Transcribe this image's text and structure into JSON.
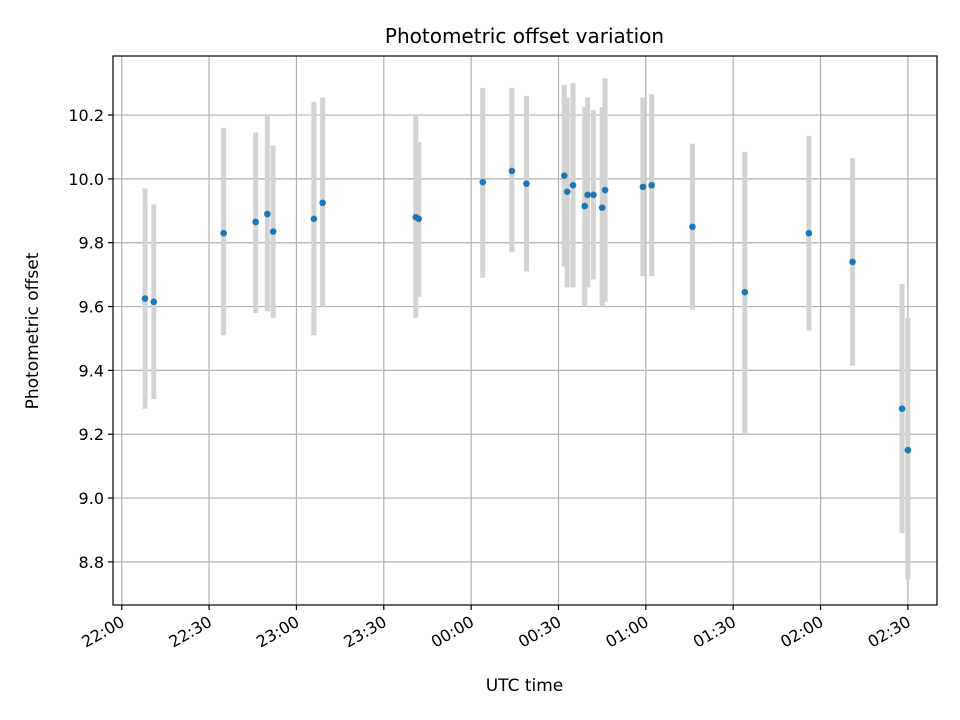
{
  "chart_data": {
    "type": "scatter",
    "title": "Photometric offset variation",
    "xlabel": "UTC time",
    "ylabel": "Photometric offset",
    "x_tick_labels": [
      "22:00",
      "22:30",
      "23:00",
      "23:30",
      "00:00",
      "00:30",
      "01:00",
      "01:30",
      "02:00",
      "02:30"
    ],
    "y_ticks": [
      8.8,
      9.0,
      9.2,
      9.4,
      9.6,
      9.8,
      10.0,
      10.2
    ],
    "y_tick_labels": [
      "8.8",
      "9.0",
      "9.2",
      "9.4",
      "9.6",
      "9.8",
      "10.0",
      "10.2"
    ],
    "xlim": [
      "21:57",
      "02:40"
    ],
    "ylim": [
      8.665,
      10.385
    ],
    "grid": true,
    "colors": {
      "point": "#1f77b4",
      "errorbar": "#d3d3d3",
      "grid": "#b0b0b0"
    },
    "points": [
      {
        "t": "22:08",
        "y": 9.625,
        "lo": 9.28,
        "hi": 9.97
      },
      {
        "t": "22:11",
        "y": 9.615,
        "lo": 9.31,
        "hi": 9.92
      },
      {
        "t": "22:35",
        "y": 9.83,
        "lo": 9.51,
        "hi": 10.16
      },
      {
        "t": "22:46",
        "y": 9.865,
        "lo": 9.58,
        "hi": 10.145
      },
      {
        "t": "22:50",
        "y": 9.89,
        "lo": 9.585,
        "hi": 10.2
      },
      {
        "t": "22:52",
        "y": 9.835,
        "lo": 9.565,
        "hi": 10.105
      },
      {
        "t": "23:06",
        "y": 9.875,
        "lo": 9.51,
        "hi": 10.24
      },
      {
        "t": "23:09",
        "y": 9.925,
        "lo": 9.6,
        "hi": 10.255
      },
      {
        "t": "23:41",
        "y": 9.88,
        "lo": 9.565,
        "hi": 10.2
      },
      {
        "t": "23:42",
        "y": 9.875,
        "lo": 9.63,
        "hi": 10.115
      },
      {
        "t": "00:04",
        "y": 9.99,
        "lo": 9.69,
        "hi": 10.285
      },
      {
        "t": "00:14",
        "y": 10.025,
        "lo": 9.77,
        "hi": 10.285
      },
      {
        "t": "00:19",
        "y": 9.985,
        "lo": 9.71,
        "hi": 10.26
      },
      {
        "t": "00:32",
        "y": 10.01,
        "lo": 9.725,
        "hi": 10.295
      },
      {
        "t": "00:33",
        "y": 9.96,
        "lo": 9.66,
        "hi": 10.255
      },
      {
        "t": "00:35",
        "y": 9.98,
        "lo": 9.66,
        "hi": 10.3
      },
      {
        "t": "00:39",
        "y": 9.915,
        "lo": 9.6,
        "hi": 10.225
      },
      {
        "t": "00:40",
        "y": 9.95,
        "lo": 9.66,
        "hi": 10.255
      },
      {
        "t": "00:42",
        "y": 9.95,
        "lo": 9.685,
        "hi": 10.215
      },
      {
        "t": "00:45",
        "y": 9.91,
        "lo": 9.6,
        "hi": 10.225
      },
      {
        "t": "00:46",
        "y": 9.965,
        "lo": 9.615,
        "hi": 10.315
      },
      {
        "t": "00:59",
        "y": 9.975,
        "lo": 9.695,
        "hi": 10.255
      },
      {
        "t": "01:02",
        "y": 9.98,
        "lo": 9.695,
        "hi": 10.265
      },
      {
        "t": "01:16",
        "y": 9.85,
        "lo": 9.59,
        "hi": 10.11
      },
      {
        "t": "01:34",
        "y": 9.645,
        "lo": 9.2,
        "hi": 10.085
      },
      {
        "t": "01:56",
        "y": 9.83,
        "lo": 9.525,
        "hi": 10.135
      },
      {
        "t": "02:11",
        "y": 9.74,
        "lo": 9.415,
        "hi": 10.065
      },
      {
        "t": "02:28",
        "y": 9.28,
        "lo": 8.89,
        "hi": 9.67
      },
      {
        "t": "02:30",
        "y": 9.15,
        "lo": 8.745,
        "hi": 9.565
      }
    ]
  }
}
